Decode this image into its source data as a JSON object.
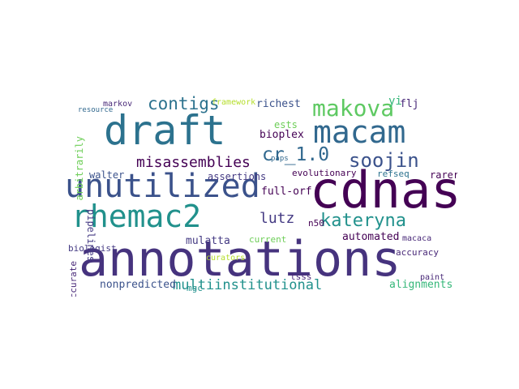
{
  "words": {
    "annotations": "annotations",
    "cdnas": "cdnas",
    "draft": "draft",
    "unutilized": "unutilized",
    "macam": "macam",
    "rhemac2": "rhemac2",
    "makova": "makova",
    "kateryna": "kateryna",
    "soojin": "soojin",
    "contigs": "contigs",
    "misassemblies": "misassemblies",
    "cr_1_0": "cr_1.0",
    "multiinstitutional": "multiinstitutional",
    "alignments": "alignments",
    "lutz": "lutz",
    "automated": "automated",
    "mulatta": "mulatta",
    "nonpredicted": "nonpredicted",
    "full_orf": "full-orf",
    "bioplex": "bioplex",
    "richest": "richest",
    "walter": "walter",
    "evolutionary": "evolutionary",
    "assertions": "assertions",
    "refseq": "refseq",
    "n50": "n50",
    "flj": "flj",
    "yi": "yi",
    "ests": "ests",
    "rarer": "rarer",
    "accuracy": "accuracy",
    "macaca": "macaca",
    "paint": "paint",
    "tsss": "tsss",
    "biologist": "biologist",
    "accurate": "accurate",
    "pipelines": "pipelines",
    "markov": "markov",
    "resource": "resource",
    "framework": "framework",
    "current": "current",
    "mgc": "mgc",
    "curators": "curators",
    "paps": "paps",
    "arbitrarily": "arbitrarily"
  }
}
